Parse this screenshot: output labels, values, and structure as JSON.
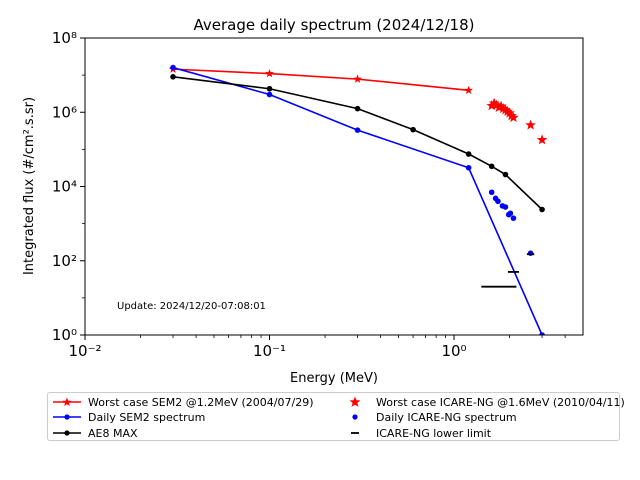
{
  "chart_data": {
    "type": "scatter",
    "title": "Average daily spectrum (2024/12/18)",
    "xlabel": "Energy (MeV)",
    "ylabel": "Integrated flux (#/cm².s.sr)",
    "xscale": "log",
    "yscale": "log",
    "xlim": [
      0.01,
      5
    ],
    "ylim": [
      1,
      100000000
    ],
    "xticks": [
      {
        "value": 0.01,
        "label": "10⁻²"
      },
      {
        "value": 0.1,
        "label": "10⁻¹"
      },
      {
        "value": 1,
        "label": "10⁰"
      }
    ],
    "yticks": [
      {
        "value": 1,
        "label": "10⁰"
      },
      {
        "value": 100,
        "label": "10²"
      },
      {
        "value": 10000,
        "label": "10⁴"
      },
      {
        "value": 1000000,
        "label": "10⁶"
      },
      {
        "value": 100000000,
        "label": "10⁸"
      }
    ],
    "annotation": "Update: 2024/12/20-07:08:01",
    "grid": false,
    "legend_position": "bottom",
    "series": [
      {
        "name": "Worst case SEM2 @1.2MeV (2004/07/29)",
        "style": "line-star",
        "color": "#ff0000",
        "x": [
          0.03,
          0.1,
          0.3,
          1.2
        ],
        "y": [
          14500000,
          11000000,
          7800000,
          3900000
        ]
      },
      {
        "name": "Daily SEM2 spectrum",
        "style": "line-dot",
        "color": "#0000ff",
        "x": [
          0.03,
          0.1,
          0.3,
          1.2,
          3.0
        ],
        "y": [
          16000000,
          3000000,
          330000,
          32000,
          1
        ]
      },
      {
        "name": "AE8 MAX",
        "style": "line-dot",
        "color": "#000000",
        "x": [
          0.03,
          0.1,
          0.3,
          0.6,
          1.2,
          1.6,
          1.9,
          3.0
        ],
        "y": [
          9000000,
          4300000,
          1250000,
          340000,
          75000,
          35000,
          21000,
          2400
        ]
      },
      {
        "name": "Worst case ICARE-NG @1.6MeV (2010/04/11)",
        "style": "star",
        "color": "#ff0000",
        "x": [
          1.6,
          1.65,
          1.7,
          1.75,
          1.8,
          1.85,
          1.9,
          1.95,
          2.0,
          2.05,
          2.1,
          2.6,
          3.0
        ],
        "y": [
          1500000,
          1750000,
          1550000,
          1350000,
          1450000,
          1250000,
          1150000,
          1050000,
          950000,
          800000,
          720000,
          450000,
          180000
        ]
      },
      {
        "name": "Daily ICARE-NG spectrum",
        "style": "dot",
        "color": "#0000ff",
        "x": [
          1.6,
          1.68,
          1.73,
          1.83,
          1.9,
          1.98,
          2.02,
          2.1,
          2.6
        ],
        "y": [
          7000,
          4800,
          4000,
          3000,
          2800,
          1750,
          1900,
          1400,
          160
        ]
      },
      {
        "name": "ICARE-NG lower limit",
        "style": "hline",
        "color": "#000000",
        "x": [
          1.75,
          2.1,
          2.6
        ],
        "y": [
          20,
          50,
          150
        ],
        "half_width": [
          0.095,
          0.03,
          0.02
        ]
      }
    ]
  }
}
